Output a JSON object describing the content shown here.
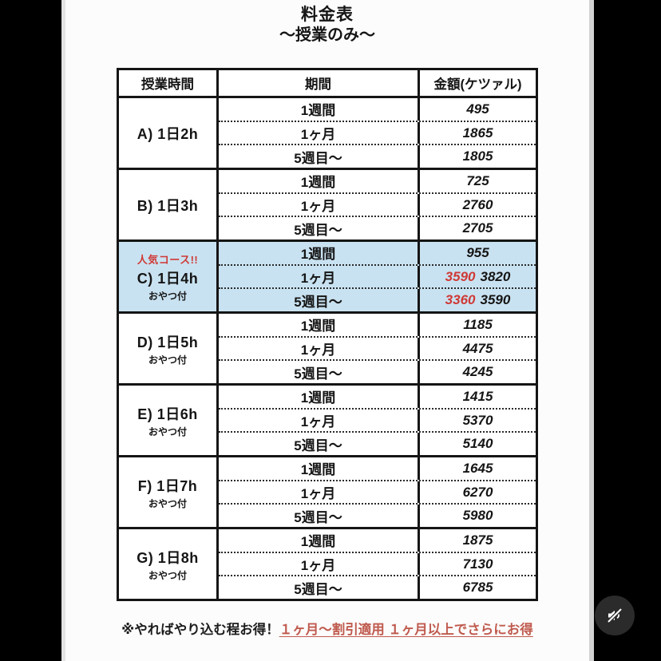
{
  "sheet": {
    "title": "料金表",
    "subtitle": "〜授業のみ〜"
  },
  "table": {
    "headers": [
      "授業時間",
      "期間",
      "金額(ケツァル)"
    ],
    "rows": [
      {
        "badge": "",
        "course": "A) 1日2h",
        "note": "",
        "highlighted": false,
        "periods": [
          {
            "period": "1週間",
            "price": "495"
          },
          {
            "period": "1ヶ月",
            "price": "1865"
          },
          {
            "period": "5週目〜",
            "price": "1805"
          }
        ]
      },
      {
        "badge": "",
        "course": "B) 1日3h",
        "note": "",
        "highlighted": false,
        "periods": [
          {
            "period": "1週間",
            "price": "725"
          },
          {
            "period": "1ヶ月",
            "price": "2760"
          },
          {
            "period": "5週目〜",
            "price": "2705"
          }
        ]
      },
      {
        "badge": "人気コース!!",
        "course": "C) 1日4h",
        "note": "おやつ付",
        "highlighted": true,
        "periods": [
          {
            "period": "1週間",
            "price": "955"
          },
          {
            "period": "1ヶ月",
            "price_discount": "3590",
            "price": "3820"
          },
          {
            "period": "5週目〜",
            "price_discount": "3360",
            "price": "3590"
          }
        ]
      },
      {
        "badge": "",
        "course": "D) 1日5h",
        "note": "おやつ付",
        "highlighted": false,
        "periods": [
          {
            "period": "1週間",
            "price": "1185"
          },
          {
            "period": "1ヶ月",
            "price": "4475"
          },
          {
            "period": "5週目〜",
            "price": "4245"
          }
        ]
      },
      {
        "badge": "",
        "course": "E) 1日6h",
        "note": "おやつ付",
        "highlighted": false,
        "periods": [
          {
            "period": "1週間",
            "price": "1415"
          },
          {
            "period": "1ヶ月",
            "price": "5370"
          },
          {
            "period": "5週目〜",
            "price": "5140"
          }
        ]
      },
      {
        "badge": "",
        "course": "F) 1日7h",
        "note": "おやつ付",
        "highlighted": false,
        "periods": [
          {
            "period": "1週間",
            "price": "1645"
          },
          {
            "period": "1ヶ月",
            "price": "6270"
          },
          {
            "period": "5週目〜",
            "price": "5980"
          }
        ]
      },
      {
        "badge": "",
        "course": "G) 1日8h",
        "note": "おやつ付",
        "highlighted": false,
        "periods": [
          {
            "period": "1週間",
            "price": "1875"
          },
          {
            "period": "1ヶ月",
            "price": "7130"
          },
          {
            "period": "5週目〜",
            "price": "6785"
          }
        ]
      }
    ]
  },
  "footer": {
    "note_black": "※やればやり込む程お得！",
    "note_red": "１ヶ月〜割引適用 １ヶ月以上でさらにお得"
  },
  "overlay": {
    "mute_icon": "muted-speaker"
  },
  "colors": {
    "highlight_blue": "#c9e2f1",
    "accent_red": "#cf3a36",
    "footer_red": "#c05a4e",
    "table_border": "#151515"
  }
}
